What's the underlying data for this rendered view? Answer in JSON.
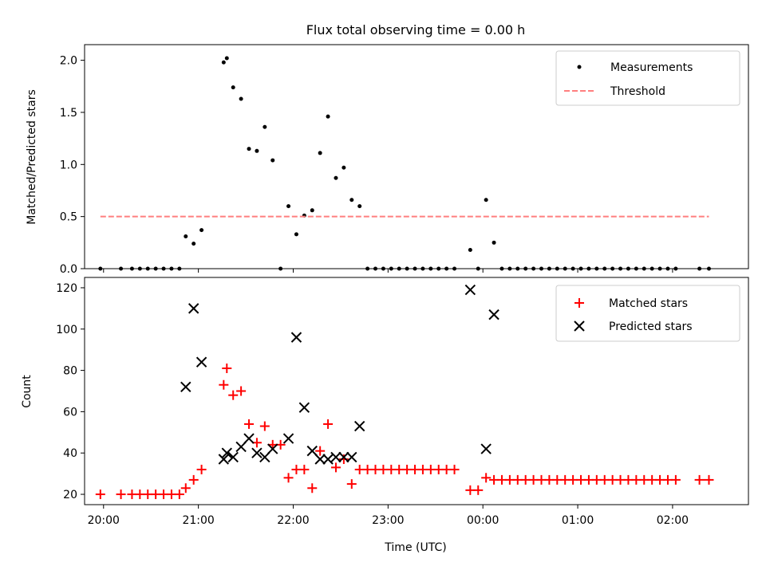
{
  "title": "Flux total observing time = 0.00 h",
  "chart_data": [
    {
      "type": "scatter",
      "title": "Flux total observing time = 0.00 h",
      "xlabel": "",
      "ylabel": "Matched/Predicted stars",
      "xlim": [
        "19:48",
        "02:48"
      ],
      "ylim": [
        0,
        2.15
      ],
      "yticks": [
        0.0,
        0.5,
        1.0,
        1.5,
        2.0
      ],
      "ytick_labels": [
        "0.0",
        "0.5",
        "1.0",
        "1.5",
        "2.0"
      ],
      "legend_position": "upper right",
      "series": [
        {
          "name": "Measurements",
          "marker": "dot",
          "color": "#000000",
          "points": [
            [
              "19:58",
              0
            ],
            [
              "20:11",
              0
            ],
            [
              "20:18",
              0
            ],
            [
              "20:23",
              0
            ],
            [
              "20:28",
              0
            ],
            [
              "20:33",
              0
            ],
            [
              "20:38",
              0
            ],
            [
              "20:43",
              0
            ],
            [
              "20:48",
              0
            ],
            [
              "20:52",
              0.31
            ],
            [
              "20:57",
              0.24
            ],
            [
              "21:02",
              0.37
            ],
            [
              "21:16",
              1.98
            ],
            [
              "21:18",
              2.02
            ],
            [
              "21:22",
              1.74
            ],
            [
              "21:27",
              1.63
            ],
            [
              "21:32",
              1.15
            ],
            [
              "21:37",
              1.13
            ],
            [
              "21:42",
              1.36
            ],
            [
              "21:47",
              1.04
            ],
            [
              "21:52",
              0
            ],
            [
              "21:57",
              0.6
            ],
            [
              "22:02",
              0.33
            ],
            [
              "22:07",
              0.51
            ],
            [
              "22:12",
              0.56
            ],
            [
              "22:17",
              1.11
            ],
            [
              "22:22",
              1.46
            ],
            [
              "22:27",
              0.87
            ],
            [
              "22:32",
              0.97
            ],
            [
              "22:37",
              0.66
            ],
            [
              "22:42",
              0.6
            ],
            [
              "22:47",
              0
            ],
            [
              "22:52",
              0
            ],
            [
              "22:57",
              0
            ],
            [
              "23:02",
              0
            ],
            [
              "23:07",
              0
            ],
            [
              "23:12",
              0
            ],
            [
              "23:17",
              0
            ],
            [
              "23:22",
              0
            ],
            [
              "23:27",
              0
            ],
            [
              "23:32",
              0
            ],
            [
              "23:37",
              0
            ],
            [
              "23:42",
              0
            ],
            [
              "23:52",
              0.18
            ],
            [
              "23:57",
              0
            ],
            [
              "00:02",
              0.66
            ],
            [
              "00:07",
              0.25
            ],
            [
              "00:12",
              0
            ],
            [
              "00:17",
              0
            ],
            [
              "00:22",
              0
            ],
            [
              "00:27",
              0
            ],
            [
              "00:32",
              0
            ],
            [
              "00:37",
              0
            ],
            [
              "00:42",
              0
            ],
            [
              "00:47",
              0
            ],
            [
              "00:52",
              0
            ],
            [
              "00:57",
              0
            ],
            [
              "01:02",
              0
            ],
            [
              "01:07",
              0
            ],
            [
              "01:12",
              0
            ],
            [
              "01:17",
              0
            ],
            [
              "01:22",
              0
            ],
            [
              "01:27",
              0
            ],
            [
              "01:32",
              0
            ],
            [
              "01:37",
              0
            ],
            [
              "01:42",
              0
            ],
            [
              "01:47",
              0
            ],
            [
              "01:52",
              0
            ],
            [
              "01:57",
              0
            ],
            [
              "02:02",
              0
            ],
            [
              "02:17",
              0
            ],
            [
              "02:23",
              0
            ]
          ]
        },
        {
          "name": "Threshold",
          "marker": "dashed-line",
          "color": "#ff7f7f",
          "points": [
            [
              "19:58",
              0.5
            ],
            [
              "02:23",
              0.5
            ]
          ]
        }
      ]
    },
    {
      "type": "scatter",
      "xlabel": "Time (UTC)",
      "ylabel": "Count",
      "xlim": [
        "19:48",
        "02:48"
      ],
      "ylim": [
        15,
        125
      ],
      "yticks": [
        20,
        40,
        60,
        80,
        100,
        120
      ],
      "ytick_labels": [
        "20",
        "40",
        "60",
        "80",
        "100",
        "120"
      ],
      "xticks": [
        "20:00",
        "21:00",
        "22:00",
        "23:00",
        "00:00",
        "01:00",
        "02:00"
      ],
      "xtick_labels": [
        "20:00",
        "21:00",
        "22:00",
        "23:00",
        "00:00",
        "01:00",
        "02:00"
      ],
      "legend_position": "upper right",
      "series": [
        {
          "name": "Matched stars",
          "marker": "plus",
          "color": "#ff0000",
          "points": [
            [
              "19:58",
              20
            ],
            [
              "20:11",
              20
            ],
            [
              "20:18",
              20
            ],
            [
              "20:23",
              20
            ],
            [
              "20:28",
              20
            ],
            [
              "20:33",
              20
            ],
            [
              "20:38",
              20
            ],
            [
              "20:43",
              20
            ],
            [
              "20:48",
              20
            ],
            [
              "20:52",
              23
            ],
            [
              "20:57",
              27
            ],
            [
              "21:02",
              32
            ],
            [
              "21:16",
              73
            ],
            [
              "21:18",
              81
            ],
            [
              "21:22",
              68
            ],
            [
              "21:27",
              70
            ],
            [
              "21:32",
              54
            ],
            [
              "21:37",
              45
            ],
            [
              "21:42",
              53
            ],
            [
              "21:47",
              44
            ],
            [
              "21:52",
              44
            ],
            [
              "21:57",
              28
            ],
            [
              "22:02",
              32
            ],
            [
              "22:07",
              32
            ],
            [
              "22:12",
              23
            ],
            [
              "22:17",
              41
            ],
            [
              "22:22",
              54
            ],
            [
              "22:27",
              33
            ],
            [
              "22:32",
              37
            ],
            [
              "22:37",
              25
            ],
            [
              "22:42",
              32
            ],
            [
              "22:47",
              32
            ],
            [
              "22:52",
              32
            ],
            [
              "22:57",
              32
            ],
            [
              "23:02",
              32
            ],
            [
              "23:07",
              32
            ],
            [
              "23:12",
              32
            ],
            [
              "23:17",
              32
            ],
            [
              "23:22",
              32
            ],
            [
              "23:27",
              32
            ],
            [
              "23:32",
              32
            ],
            [
              "23:37",
              32
            ],
            [
              "23:42",
              32
            ],
            [
              "23:52",
              22
            ],
            [
              "23:57",
              22
            ],
            [
              "00:02",
              28
            ],
            [
              "00:07",
              27
            ],
            [
              "00:12",
              27
            ],
            [
              "00:17",
              27
            ],
            [
              "00:22",
              27
            ],
            [
              "00:27",
              27
            ],
            [
              "00:32",
              27
            ],
            [
              "00:37",
              27
            ],
            [
              "00:42",
              27
            ],
            [
              "00:47",
              27
            ],
            [
              "00:52",
              27
            ],
            [
              "00:57",
              27
            ],
            [
              "01:02",
              27
            ],
            [
              "01:07",
              27
            ],
            [
              "01:12",
              27
            ],
            [
              "01:17",
              27
            ],
            [
              "01:22",
              27
            ],
            [
              "01:27",
              27
            ],
            [
              "01:32",
              27
            ],
            [
              "01:37",
              27
            ],
            [
              "01:42",
              27
            ],
            [
              "01:47",
              27
            ],
            [
              "01:52",
              27
            ],
            [
              "01:57",
              27
            ],
            [
              "02:02",
              27
            ],
            [
              "02:17",
              27
            ],
            [
              "02:23",
              27
            ]
          ]
        },
        {
          "name": "Predicted stars",
          "marker": "x",
          "color": "#000000",
          "points": [
            [
              "20:52",
              72
            ],
            [
              "20:57",
              110
            ],
            [
              "21:02",
              84
            ],
            [
              "21:16",
              37
            ],
            [
              "21:18",
              40
            ],
            [
              "21:22",
              38
            ],
            [
              "21:27",
              43
            ],
            [
              "21:32",
              47
            ],
            [
              "21:37",
              40
            ],
            [
              "21:42",
              38
            ],
            [
              "21:47",
              42
            ],
            [
              "21:57",
              47
            ],
            [
              "22:02",
              96
            ],
            [
              "22:07",
              62
            ],
            [
              "22:12",
              41
            ],
            [
              "22:17",
              37
            ],
            [
              "22:22",
              37
            ],
            [
              "22:27",
              38
            ],
            [
              "22:32",
              38
            ],
            [
              "22:37",
              38
            ],
            [
              "22:42",
              53
            ],
            [
              "23:52",
              119
            ],
            [
              "00:02",
              42
            ],
            [
              "00:07",
              107
            ]
          ]
        }
      ]
    }
  ]
}
